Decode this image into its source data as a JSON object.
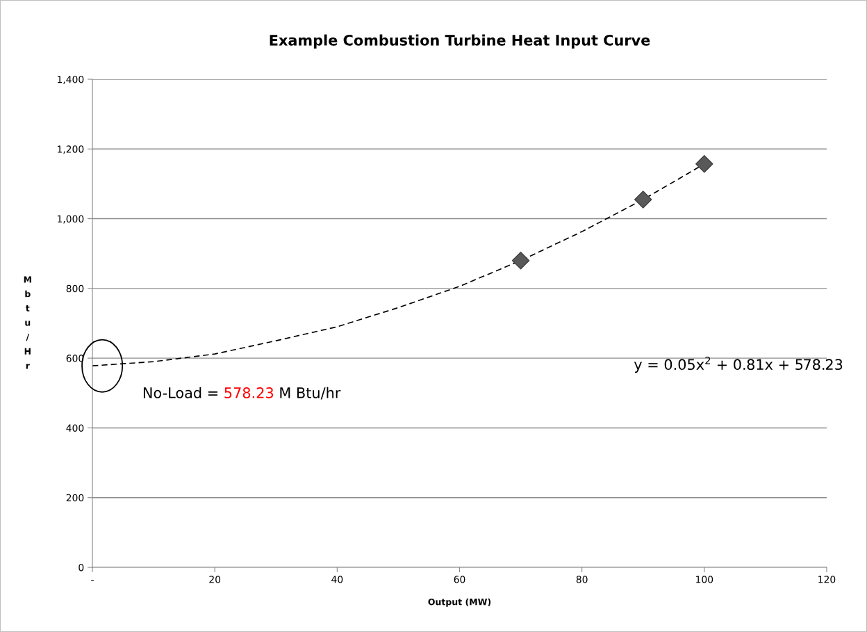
{
  "chart_data": {
    "type": "scatter",
    "title": "Example Combustion Turbine Heat Input Curve",
    "xlabel": "Output (MW)",
    "ylabel": "Mbtu/Hr",
    "series": [
      {
        "color": "#595959",
        "marker": "diamond",
        "x": [
          70,
          90,
          100
        ],
        "values": [
          880,
          1055,
          1157
        ]
      },
      {
        "type": "line",
        "color": "#000000",
        "marker": "none",
        "line_style": "dashed",
        "x": [
          0,
          10,
          20,
          30,
          40,
          50,
          60,
          70,
          80,
          90,
          100
        ],
        "values": [
          578,
          590,
          612,
          650,
          690,
          745,
          806,
          880,
          963,
          1055,
          1157
        ]
      }
    ],
    "xlim": [
      0,
      120
    ],
    "xticks": [
      {
        "value": 0,
        "label": "-"
      },
      20,
      40,
      60,
      80,
      100,
      120
    ],
    "ylim": [
      0,
      1400
    ],
    "yticks": [
      0,
      200,
      400,
      600,
      800,
      {
        "value": 1000,
        "label": "1,000"
      },
      {
        "value": 1200,
        "label": "1,200"
      },
      {
        "value": 1400,
        "label": "1,400"
      }
    ],
    "grid": "y",
    "legend": false,
    "annotations": [
      "No-Load = 578.23 M Btu/hr",
      "y = 0.05x$^{2}$ + 0.81x + 578.23"
    ]
  }
}
